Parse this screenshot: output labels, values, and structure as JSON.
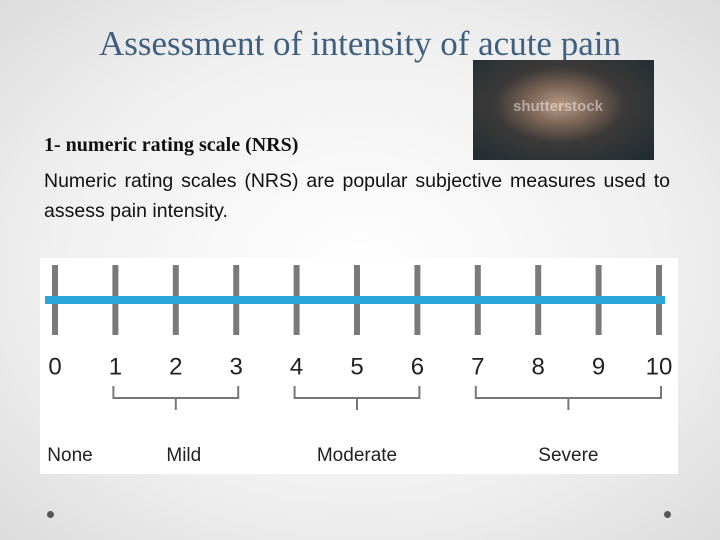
{
  "slide": {
    "title": "Assessment of intensity of acute pain",
    "image": {
      "watermark": "shutterstock"
    },
    "subtitle": "1- numeric rating scale (NRS)",
    "body": "Numeric rating scales (NRS) are popular subjective measures used to assess pain intensity.",
    "scale": {
      "numbers": [
        0,
        1,
        2,
        3,
        4,
        5,
        6,
        7,
        8,
        9,
        10
      ],
      "groups": [
        "None",
        "Mild",
        "Moderate",
        "Severe"
      ]
    }
  }
}
